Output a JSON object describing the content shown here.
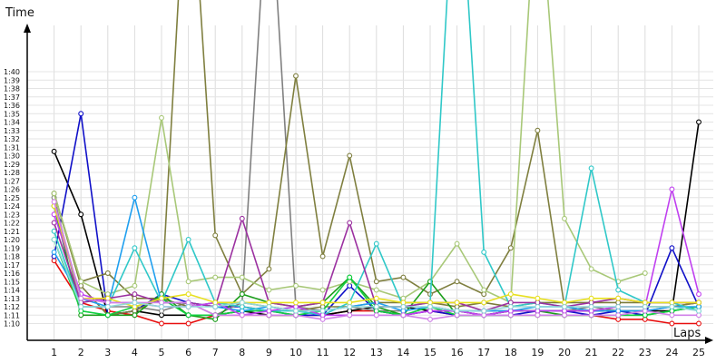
{
  "chart_data": {
    "type": "line",
    "xlabel": "Laps",
    "ylabel": "Time",
    "x": [
      1,
      2,
      3,
      4,
      5,
      6,
      7,
      8,
      9,
      10,
      11,
      12,
      13,
      14,
      15,
      16,
      17,
      18,
      19,
      20,
      21,
      22,
      23,
      24,
      25
    ],
    "y_ticks": [
      "1:10",
      "1:11",
      "1:12",
      "1:13",
      "1:14",
      "1:15",
      "1:16",
      "1:17",
      "1:18",
      "1:19",
      "1:20",
      "1:21",
      "1:22",
      "1:23",
      "1:24",
      "1:25",
      "1:26",
      "1:27",
      "1:28",
      "1:29",
      "1:30",
      "1:31",
      "1:32",
      "1:33",
      "1:34",
      "1:35",
      "1:36",
      "1:37",
      "1:38",
      "1:39",
      "1:40"
    ],
    "xlim": [
      0,
      25.5
    ],
    "ylim": [
      66,
      107
    ],
    "y_unit": "seconds",
    "grid": true,
    "legend": "none",
    "series": [
      {
        "color": "#e81010",
        "values": [
          77.5,
          72.5,
          71.5,
          71.0,
          70.0,
          70.0,
          71.0,
          71.0,
          71.0,
          71.0,
          71.0,
          71.5,
          71.5,
          71.0,
          71.5,
          71.0,
          71.0,
          71.0,
          71.0,
          71.0,
          71.0,
          70.5,
          70.5,
          70.0,
          70.0
        ]
      },
      {
        "color": "#000000",
        "values": [
          90.5,
          83.0,
          71.0,
          71.5,
          71.0,
          71.0,
          71.0,
          71.5,
          71.0,
          71.0,
          71.0,
          71.5,
          72.0,
          72.0,
          71.5,
          71.5,
          71.0,
          71.5,
          71.5,
          71.5,
          71.5,
          71.5,
          71.5,
          71.5,
          94.0
        ]
      },
      {
        "color": "#1010c8",
        "values": [
          78.0,
          95.0,
          71.0,
          71.5,
          73.5,
          72.5,
          72.0,
          72.0,
          71.5,
          71.0,
          71.0,
          74.5,
          71.5,
          71.0,
          71.5,
          71.0,
          71.0,
          71.0,
          71.5,
          71.5,
          71.0,
          71.5,
          71.0,
          79.0,
          72.0
        ]
      },
      {
        "color": "#808080",
        "values": [
          85.0,
          72.0,
          72.0,
          72.0,
          71.5,
          72.5,
          71.0,
          72.5,
          125.0,
          72.0,
          71.5,
          72.0,
          71.5,
          71.5,
          72.0,
          71.5,
          71.5,
          71.5,
          71.5,
          71.5,
          72.0,
          71.5,
          71.5,
          72.0,
          72.5
        ]
      },
      {
        "color": "#7b7b3a",
        "values": [
          85.5,
          75.0,
          76.0,
          73.0,
          73.0,
          72.0,
          72.5,
          72.5,
          72.0,
          71.5,
          72.0,
          72.0,
          72.5,
          72.5,
          72.5,
          72.0,
          72.5,
          72.0,
          72.5,
          72.5,
          72.5,
          72.5,
          72.5,
          72.5,
          72.5
        ]
      },
      {
        "color": "#7f7f3f",
        "values": [
          85.5,
          74.5,
          71.0,
          71.5,
          73.0,
          130.0,
          80.5,
          73.5,
          76.5,
          99.5,
          78.0,
          90.0,
          75.0,
          75.5,
          73.5,
          75.0,
          73.5,
          79.0,
          93.0,
          72.0,
          71.5,
          72.0,
          72.0,
          72.0,
          72.5
        ]
      },
      {
        "color": "#a8c878",
        "values": [
          85.5,
          75.0,
          73.5,
          74.5,
          94.5,
          75.0,
          75.5,
          75.5,
          74.0,
          74.5,
          74.0,
          75.0,
          74.0,
          73.0,
          75.0,
          79.5,
          74.0,
          72.5,
          125.0,
          82.5,
          76.5,
          75.0,
          76.0,
          null,
          null
        ]
      },
      {
        "color": "#1a9e1a",
        "values": [
          84.0,
          71.0,
          71.0,
          71.0,
          73.5,
          71.0,
          70.5,
          73.5,
          72.5,
          72.0,
          72.5,
          75.5,
          72.0,
          71.0,
          75.0,
          71.0,
          71.0,
          71.5,
          71.5,
          71.0,
          71.0,
          71.0,
          71.0,
          71.5,
          72.0
        ]
      },
      {
        "color": "#10d040",
        "values": [
          80.0,
          71.5,
          71.0,
          72.0,
          73.0,
          71.0,
          71.0,
          71.5,
          71.5,
          71.0,
          71.5,
          75.5,
          71.5,
          71.0,
          72.0,
          71.0,
          71.0,
          71.0,
          71.0,
          71.0,
          71.0,
          71.0,
          71.0,
          71.5,
          72.0
        ]
      },
      {
        "color": "#1f9fef",
        "values": [
          78.5,
          73.0,
          72.0,
          85.0,
          72.5,
          72.5,
          72.0,
          71.5,
          72.0,
          71.5,
          71.5,
          72.0,
          72.5,
          71.5,
          72.0,
          71.5,
          71.5,
          71.5,
          72.0,
          72.0,
          71.5,
          71.5,
          71.5,
          72.0,
          72.0
        ]
      },
      {
        "color": "#30c8c8",
        "values": [
          81.0,
          72.0,
          72.0,
          79.0,
          72.5,
          80.0,
          72.5,
          72.0,
          71.5,
          71.5,
          71.0,
          72.5,
          79.5,
          72.0,
          72.5,
          130.0,
          78.5,
          72.0,
          72.5,
          72.0,
          88.5,
          74.0,
          72.5,
          72.5,
          71.5
        ]
      },
      {
        "color": "#9b30a0",
        "values": [
          82.0,
          72.5,
          73.0,
          73.5,
          72.5,
          72.5,
          72.0,
          82.5,
          72.5,
          72.0,
          72.5,
          82.0,
          72.0,
          72.0,
          72.5,
          72.5,
          71.5,
          72.5,
          72.5,
          72.0,
          72.5,
          73.0,
          72.5,
          72.5,
          72.5
        ]
      },
      {
        "color": "#c040f0",
        "values": [
          83.0,
          73.5,
          72.5,
          72.5,
          72.0,
          72.0,
          72.5,
          71.0,
          71.5,
          72.0,
          71.0,
          71.0,
          71.0,
          71.0,
          71.5,
          71.5,
          71.0,
          71.5,
          71.5,
          71.5,
          71.5,
          72.0,
          72.0,
          86.0,
          73.5
        ]
      },
      {
        "color": "#e8e020",
        "values": [
          84.0,
          73.0,
          73.0,
          72.0,
          73.0,
          73.5,
          72.5,
          72.5,
          72.5,
          72.5,
          72.5,
          72.5,
          73.0,
          72.5,
          72.5,
          72.5,
          72.5,
          73.5,
          73.0,
          72.5,
          73.0,
          73.0,
          72.5,
          72.5,
          72.5
        ]
      },
      {
        "color": "#d080e8",
        "values": [
          84.5,
          73.0,
          72.5,
          72.5,
          72.5,
          72.5,
          71.0,
          71.0,
          71.0,
          71.0,
          70.5,
          71.0,
          71.0,
          71.0,
          70.5,
          71.0,
          71.0,
          71.0,
          71.0,
          71.0,
          71.0,
          71.0,
          71.5,
          71.0,
          71.0
        ]
      },
      {
        "color": "#90d8d8",
        "values": [
          80.0,
          72.0,
          72.0,
          72.5,
          72.0,
          72.0,
          72.0,
          72.5,
          72.0,
          71.5,
          71.5,
          72.0,
          72.0,
          72.0,
          72.0,
          71.5,
          71.5,
          72.0,
          72.0,
          72.0,
          72.0,
          72.0,
          72.0,
          72.0,
          71.5
        ]
      }
    ]
  }
}
